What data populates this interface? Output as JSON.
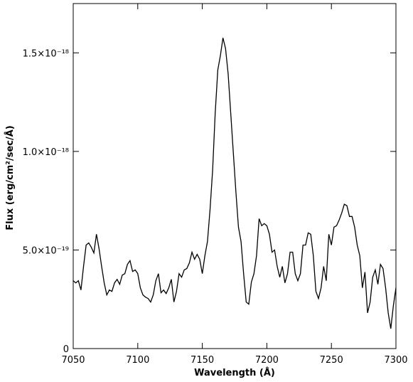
{
  "chart_data": {
    "type": "line",
    "xlabel": "Wavelength (Å)",
    "ylabel": "Flux (erg/cm²/sec/Å)",
    "xlim": [
      7050,
      7300
    ],
    "ylim": [
      0,
      1.75e-18
    ],
    "xticks": [
      7050,
      7100,
      7150,
      7200,
      7250,
      7300
    ],
    "yticks": [
      0,
      {
        "value": 5e-19,
        "label": "5.0×10⁻¹⁹"
      },
      {
        "value": 1e-18,
        "label": "1.0×10⁻¹⁸"
      },
      {
        "value": 1.5e-18,
        "label": "1.5×10⁻¹⁸"
      }
    ],
    "grid": false,
    "x": [
      7050,
      7052,
      7054,
      7056,
      7058,
      7060,
      7062,
      7064,
      7066,
      7068,
      7070,
      7072,
      7074,
      7076,
      7078,
      7080,
      7082,
      7084,
      7086,
      7088,
      7090,
      7092,
      7094,
      7096,
      7098,
      7100,
      7102,
      7104,
      7106,
      7108,
      7110,
      7112,
      7114,
      7116,
      7118,
      7120,
      7122,
      7124,
      7126,
      7128,
      7130,
      7132,
      7134,
      7136,
      7138,
      7140,
      7142,
      7144,
      7146,
      7148,
      7150,
      7152,
      7154,
      7156,
      7158,
      7160,
      7162,
      7164,
      7166,
      7168,
      7170,
      7172,
      7174,
      7176,
      7178,
      7180,
      7182,
      7184,
      7186,
      7188,
      7190,
      7192,
      7194,
      7196,
      7198,
      7200,
      7202,
      7204,
      7206,
      7208,
      7210,
      7212,
      7214,
      7216,
      7218,
      7220,
      7222,
      7224,
      7226,
      7228,
      7230,
      7232,
      7234,
      7236,
      7238,
      7240,
      7242,
      7244,
      7246,
      7248,
      7250,
      7252,
      7254,
      7256,
      7258,
      7260,
      7262,
      7264,
      7266,
      7268,
      7270,
      7272,
      7274,
      7276,
      7278,
      7280,
      7282,
      7284,
      7286,
      7288,
      7290,
      7292,
      7294,
      7296,
      7298,
      7300
    ],
    "series": [
      {
        "name": "spectrum",
        "color": "#000000",
        "values": [
          3.44e-19,
          3.33e-19,
          3.44e-19,
          2.97e-19,
          4.17e-19,
          5.25e-19,
          5.36e-19,
          5.14e-19,
          4.85e-19,
          5.8e-19,
          5.07e-19,
          4.17e-19,
          3.33e-19,
          2.72e-19,
          2.97e-19,
          2.9e-19,
          3.33e-19,
          3.51e-19,
          3.26e-19,
          3.73e-19,
          3.8e-19,
          4.27e-19,
          4.46e-19,
          3.91e-19,
          3.99e-19,
          3.8e-19,
          3.08e-19,
          2.72e-19,
          2.61e-19,
          2.54e-19,
          2.36e-19,
          2.72e-19,
          3.44e-19,
          3.8e-19,
          2.83e-19,
          2.97e-19,
          2.79e-19,
          3.08e-19,
          3.51e-19,
          2.36e-19,
          2.9e-19,
          3.8e-19,
          3.62e-19,
          3.99e-19,
          4.06e-19,
          4.35e-19,
          4.89e-19,
          4.53e-19,
          4.78e-19,
          4.53e-19,
          3.8e-19,
          4.71e-19,
          5.43e-19,
          7.06e-19,
          9.06e-19,
          1.196e-18,
          1.413e-18,
          1.486e-18,
          1.576e-18,
          1.522e-18,
          1.395e-18,
          1.196e-18,
          9.96e-19,
          7.97e-19,
          6.16e-19,
          5.43e-19,
          3.8e-19,
          2.36e-19,
          2.25e-19,
          3.37e-19,
          3.8e-19,
          4.71e-19,
          6.59e-19,
          6.23e-19,
          6.34e-19,
          6.23e-19,
          5.8e-19,
          4.89e-19,
          5e-19,
          4.17e-19,
          3.62e-19,
          4.17e-19,
          3.33e-19,
          3.8e-19,
          4.89e-19,
          4.89e-19,
          3.8e-19,
          3.44e-19,
          3.8e-19,
          5.25e-19,
          5.25e-19,
          5.87e-19,
          5.8e-19,
          4.71e-19,
          2.9e-19,
          2.54e-19,
          3.08e-19,
          4.17e-19,
          3.44e-19,
          5.8e-19,
          5.25e-19,
          6.16e-19,
          6.23e-19,
          6.52e-19,
          6.88e-19,
          7.32e-19,
          7.25e-19,
          6.7e-19,
          6.7e-19,
          6.16e-19,
          5.25e-19,
          4.71e-19,
          3.08e-19,
          3.88e-19,
          1.81e-19,
          2.36e-19,
          3.62e-19,
          3.99e-19,
          3.26e-19,
          4.27e-19,
          4.06e-19,
          3.08e-19,
          1.81e-19,
          1.01e-19,
          2.17e-19,
          3.08e-19
        ]
      }
    ]
  }
}
